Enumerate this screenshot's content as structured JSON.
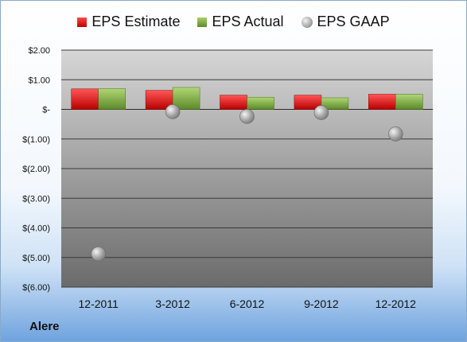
{
  "company": "Alere",
  "legend": {
    "estimate": "EPS Estimate",
    "actual": "EPS Actual",
    "gaap": "EPS GAAP"
  },
  "colors": {
    "estimate": "#e01010",
    "actual": "#7fa84a",
    "gaap": "#a8a8a8",
    "plot_top": "#d2d2d2",
    "plot_bottom": "#6e6e6e"
  },
  "chart_data": {
    "type": "bar",
    "categories": [
      "12-2011",
      "3-2012",
      "6-2012",
      "9-2012",
      "12-2012"
    ],
    "series": [
      {
        "name": "EPS Estimate",
        "kind": "bar",
        "values": [
          0.69,
          0.64,
          0.48,
          0.48,
          0.51
        ]
      },
      {
        "name": "EPS Actual",
        "kind": "bar",
        "values": [
          0.7,
          0.74,
          0.41,
          0.39,
          0.51
        ]
      },
      {
        "name": "EPS GAAP",
        "kind": "marker",
        "values": [
          -4.88,
          -0.08,
          -0.24,
          -0.11,
          -0.83
        ]
      }
    ],
    "ylim": [
      -6,
      2
    ],
    "yticks": [
      2,
      1,
      0,
      -1,
      -2,
      -3,
      -4,
      -5,
      -6
    ],
    "ytick_labels": [
      "$2.00",
      "$1.00",
      "$-",
      "$(1.00)",
      "$(2.00)",
      "$(3.00)",
      "$(4.00)",
      "$(5.00)",
      "$(6.00)"
    ],
    "grid": true,
    "legend_position": "top"
  }
}
